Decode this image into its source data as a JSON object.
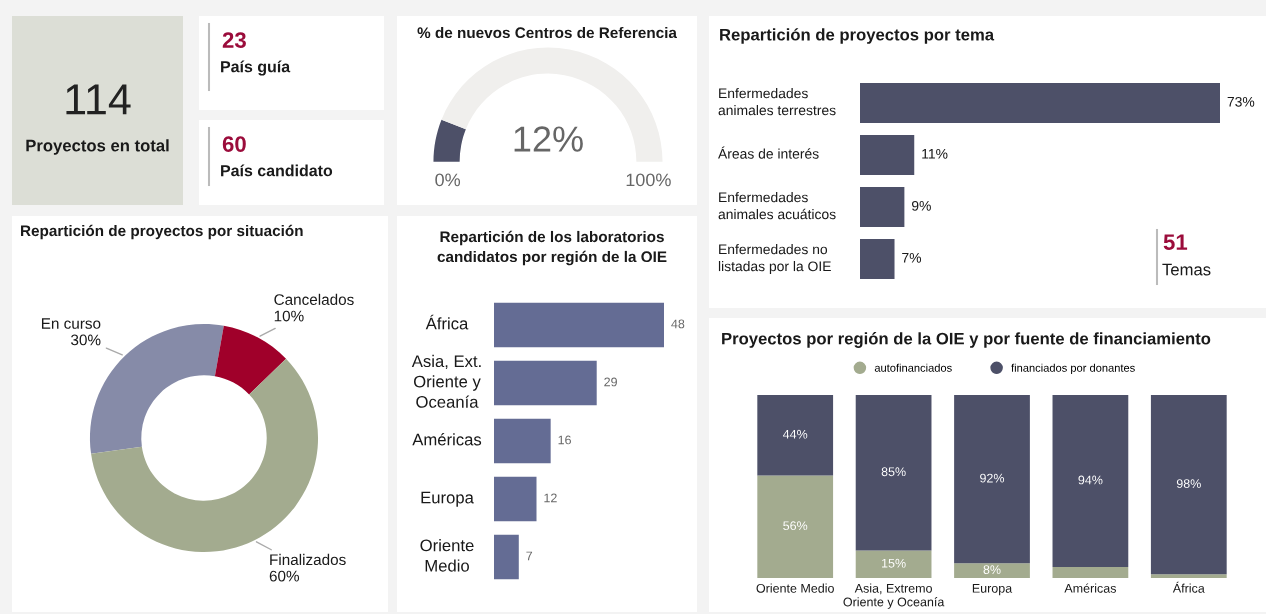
{
  "chart_data": [
    {
      "type": "other",
      "title": "Proyectos en total",
      "annotations": [
        "114"
      ]
    },
    {
      "type": "other",
      "title": "País guía",
      "annotations": [
        "23"
      ]
    },
    {
      "type": "other",
      "title": "País candidato",
      "annotations": [
        "60"
      ]
    },
    {
      "type": "donut",
      "title": "% de nuevos Centros de Referencia",
      "categories": [
        null,
        null
      ],
      "values": [
        12,
        88
      ],
      "colors": [
        "#4d5068",
        "#f0efed"
      ],
      "annotations": [
        "12%",
        "0%",
        "100%"
      ]
    },
    {
      "type": "bar",
      "orientation": "horizontal",
      "title": "Repartición de proyectos por tema",
      "categories": [
        "Enfermedades\nanimales terrestres",
        "Áreas de interés",
        "Enfermedades\nanimales acuáticos",
        "Enfermedades no\nlistadas por la OIE"
      ],
      "values": [
        73,
        11,
        9,
        7
      ],
      "color": "#4d5068",
      "value_labels": [
        "73%",
        "11%",
        "9%",
        "7%"
      ]
    },
    {
      "type": "other",
      "title": "Temas",
      "annotations": [
        "51"
      ]
    },
    {
      "type": "donut",
      "title": "Repartición de proyectos por situación",
      "categories": [
        "En curso",
        "Cancelados",
        "Finalizados"
      ],
      "values": [
        30,
        10,
        60
      ],
      "colors": [
        "#868ba8",
        "#a0002a",
        "#a3ab8f"
      ],
      "value_labels": [
        "30%",
        "10%",
        "60%"
      ]
    },
    {
      "type": "bar",
      "orientation": "horizontal",
      "title": "Repartición de los laboratorios\ncandidatos por región de la OIE",
      "categories": [
        "África",
        "Asia, Ext.\nOriente y\nOceanía",
        "Américas",
        "Europa",
        "Oriente\nMedio"
      ],
      "values": [
        48,
        29,
        16,
        12,
        7
      ],
      "color": "#646c94",
      "data_labels": true
    },
    {
      "type": "bar",
      "stacked": true,
      "title": "Proyectos por región de la OIE y por fuente de financiamiento",
      "legend": "top",
      "categories": [
        "Oriente Medio",
        "Asia, Extremo\nOriente y Oceanía",
        "Europa",
        "Américas",
        "África"
      ],
      "series": [
        {
          "name": "autofinanciados",
          "color": "#a3ab8f",
          "values": [
            56,
            15,
            8,
            6,
            2
          ],
          "value_labels": [
            "56%",
            "15%",
            "8%",
            null,
            null
          ]
        },
        {
          "name": "financiados por donantes",
          "color": "#4d5068",
          "values": [
            44,
            85,
            92,
            94,
            98
          ],
          "value_labels": [
            "44%",
            "85%",
            "92%",
            "94%",
            "98%"
          ]
        }
      ]
    }
  ]
}
